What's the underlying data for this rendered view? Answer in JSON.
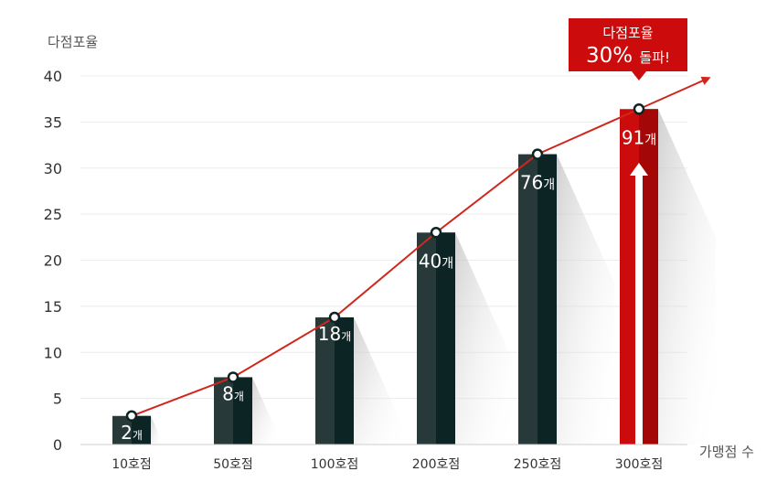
{
  "chart_data": {
    "type": "bar",
    "ylabel": "다점포율",
    "xlabel": "가맹점 수",
    "categories": [
      "10호점",
      "50호점",
      "100호점",
      "200호점",
      "250호점",
      "300호점"
    ],
    "values": [
      3.1,
      7.3,
      13.8,
      23.0,
      31.5,
      36.4
    ],
    "bar_labels": [
      {
        "num": "2",
        "unit": "개"
      },
      {
        "num": "8",
        "unit": "개"
      },
      {
        "num": "18",
        "unit": "개"
      },
      {
        "num": "40",
        "unit": "개"
      },
      {
        "num": "76",
        "unit": "개"
      },
      {
        "num": "91",
        "unit": "개"
      }
    ],
    "yticks": [
      0,
      5,
      10,
      15,
      20,
      25,
      30,
      35,
      40
    ],
    "ylim": [
      0,
      40
    ],
    "grid": true,
    "highlight_index": 5,
    "callout": {
      "line1": "다점포율",
      "line2_num": "30%",
      "line2_text": "돌파!"
    },
    "colors": {
      "bar": "#28393a",
      "bar_dark": "#0c2424",
      "highlight": "#cc0c0c",
      "highlight_dark": "#a40707",
      "trend": "#d0271d",
      "grid": "#ececec"
    }
  }
}
